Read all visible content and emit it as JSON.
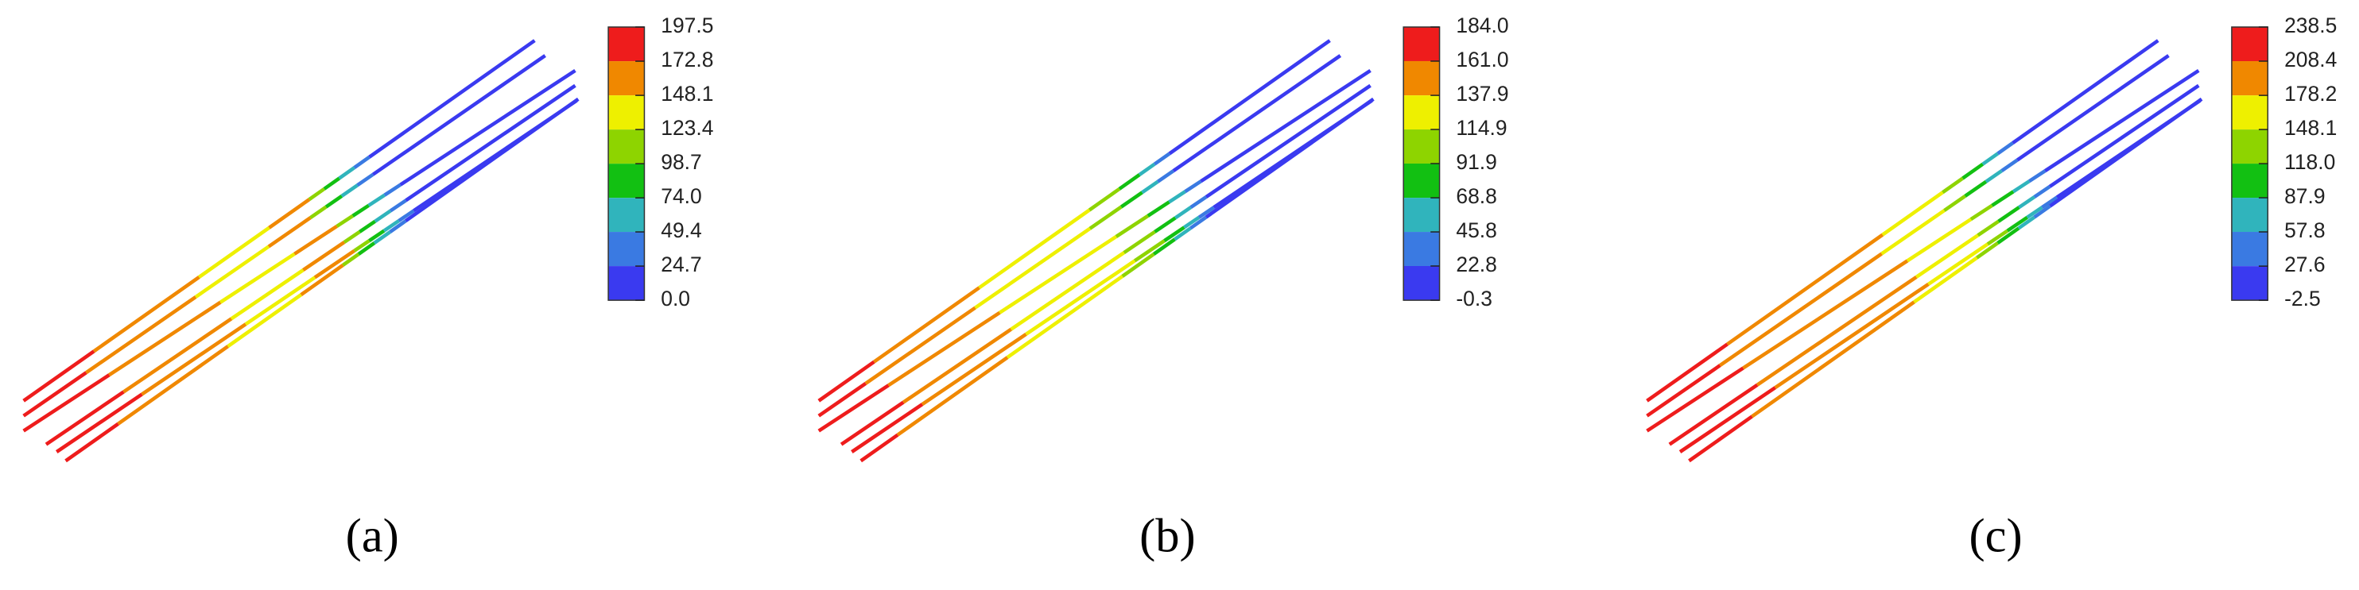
{
  "chart_data": [
    {
      "type": "contour",
      "caption": "(a)",
      "colors": [
        "#ee1c1c",
        "#f08800",
        "#eef000",
        "#8ed400",
        "#12c012",
        "#30b4bc",
        "#3a7ae2",
        "#3a3af0"
      ],
      "levels": [
        197.5,
        172.8,
        148.1,
        123.4,
        98.7,
        {
          "value": 74.0,
          "label": "74.0"
        },
        49.4,
        24.7,
        {
          "value": 0,
          "label": "0.0"
        }
      ]
    },
    {
      "type": "contour",
      "caption": "(b)",
      "colors": [
        "#ee1c1c",
        "#f08800",
        "#eef000",
        "#8ed400",
        "#12c012",
        "#30b4bc",
        "#3a7ae2",
        "#3a3af0"
      ],
      "levels": [
        {
          "value": 184,
          "label": "184.0"
        },
        {
          "value": 161,
          "label": "161.0"
        },
        137.9,
        114.9,
        91.9,
        68.8,
        45.8,
        22.8,
        -0.3
      ]
    },
    {
      "type": "contour",
      "caption": "(c)",
      "colors": [
        "#ee1c1c",
        "#f08800",
        "#eef000",
        "#8ed400",
        "#12c012",
        "#30b4bc",
        "#3a7ae2",
        "#3a3af0"
      ],
      "levels": [
        238.5,
        208.4,
        178.2,
        148.1,
        {
          "value": 118,
          "label": "118.0"
        },
        87.9,
        57.8,
        27.6,
        -2.5
      ]
    }
  ]
}
